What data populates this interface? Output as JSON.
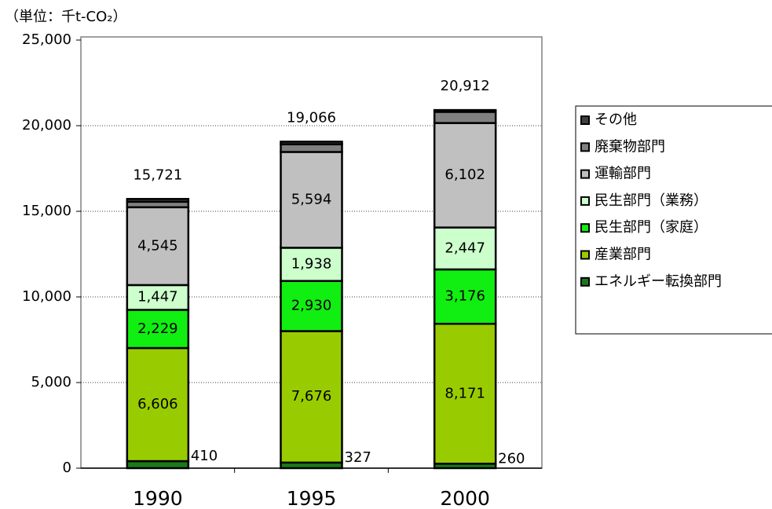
{
  "chart_data": {
    "type": "stacked-bar",
    "unit_label": "（単位：千t-CO₂）",
    "categories": [
      "1990",
      "1995",
      "2000"
    ],
    "ylim": [
      0,
      25000
    ],
    "yticks": [
      0,
      {
        "value": 5000,
        "label": "5,000"
      },
      {
        "value": 10000,
        "label": "10,000"
      },
      {
        "value": 15000,
        "label": "15,000"
      },
      {
        "value": 20000,
        "label": "20,000"
      },
      {
        "value": 25000,
        "label": "25,000"
      }
    ],
    "grid": true,
    "legend": "right",
    "series": [
      {
        "name": "エネルギー転換部門",
        "color": "#1a7a1a",
        "values": [
          410,
          327,
          260
        ],
        "value_labels": [
          "410",
          "327",
          "260"
        ],
        "label_position": "outside"
      },
      {
        "name": "産業部門",
        "color": "#99cc00",
        "values": [
          6606,
          7676,
          8171
        ],
        "value_labels": [
          "6,606",
          "7,676",
          "8,171"
        ]
      },
      {
        "name": "民生部門（家庭）",
        "color": "#11ee11",
        "values": [
          2229,
          2930,
          3176
        ],
        "value_labels": [
          "2,229",
          "2,930",
          "3,176"
        ]
      },
      {
        "name": "民生部門（業務）",
        "color": "#ccffcc",
        "values": [
          1447,
          1938,
          2447
        ],
        "value_labels": [
          "1,447",
          "1,938",
          "2,447"
        ]
      },
      {
        "name": "運輸部門",
        "color": "#c0c0c0",
        "values": [
          4545,
          5594,
          6102
        ],
        "value_labels": [
          "4,545",
          "5,594",
          "6,102"
        ]
      },
      {
        "name": "廃棄物部門",
        "color": "#808080",
        "values": [
          320,
          450,
          650
        ]
      },
      {
        "name": "その他",
        "color": "#404040",
        "values": [
          164,
          151,
          106
        ]
      }
    ],
    "totals": {
      "values": [
        15721,
        19066,
        20912
      ],
      "value_labels": [
        "15,721",
        "19,066",
        "20,912"
      ]
    }
  }
}
